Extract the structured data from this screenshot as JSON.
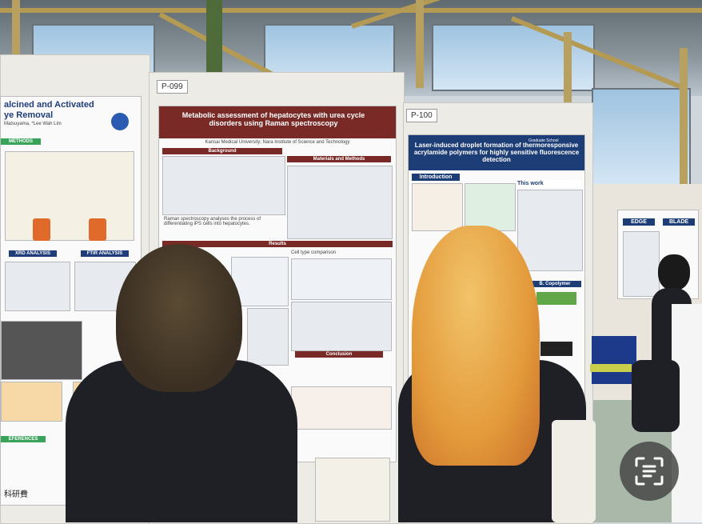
{
  "scene": {
    "description_tags": [
      "poster-session",
      "exhibition-hall"
    ],
    "colors": {
      "poster_left_accent": "#7a2a26",
      "poster_right_accent": "#1d3d77",
      "hair_orange": "#e39a3a"
    }
  },
  "boards": {
    "left_label": "P-099",
    "right_label": "P-100"
  },
  "poster_far_left": {
    "title_lines": [
      "alcined and Activated",
      "ye Removal"
    ],
    "authors": "Matsuyama, *Lee Wah Lim",
    "section_methods": "METHODS",
    "xrd_label": "XRD ANALYSIS",
    "ftir_label": "FTIR ANALYSIS",
    "section_references": "EFERENCES",
    "footer_logo_text": "科研費"
  },
  "poster_center": {
    "title": "Metabolic assessment of hepatocytes with urea cycle disorders using Raman spectroscopy",
    "affiliation": "Kansai Medical University; Nara Institute of Science and Technology",
    "section_background": "Background",
    "section_methods": "Materials and Methods",
    "section_results": "Results",
    "cell_type_label": "Cell type comparison",
    "raman_text": "Raman spectroscopy analyses the process of differentiating iPS cells into hepatocytes.",
    "conclusion_label": "Conclusion"
  },
  "poster_right": {
    "title": "Laser-induced droplet formation of thermoresponsive acrylamide polymers for highly sensitive fluorescence detection",
    "section_intro": "Introduction",
    "section_this_work": "This work",
    "section_copolymer": "B. Copolymer",
    "label_tag": "Graduate School"
  },
  "poster_far_right": {
    "tag_edge": "EDGE",
    "tag_blade": "BLADE"
  },
  "overlay": {
    "scan_icon": "text-scan-icon"
  }
}
